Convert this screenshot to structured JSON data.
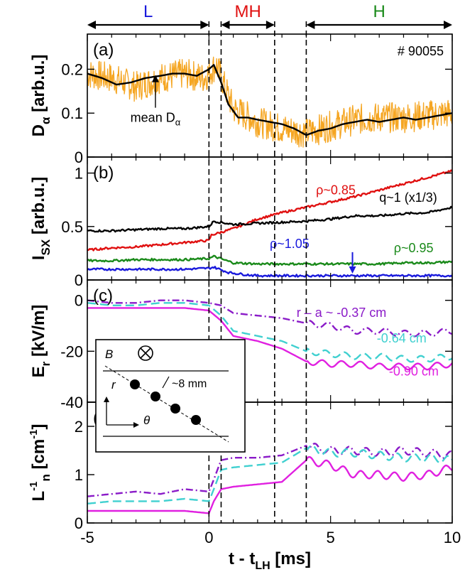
{
  "regime_bar": {
    "labels": [
      {
        "text": "L",
        "color": "#1a1adc",
        "x_start": -5.0,
        "x_end": 0.0
      },
      {
        "text": "MH",
        "color": "#e01010",
        "x_start": 0.5,
        "x_end": 2.7
      },
      {
        "text": "H",
        "color": "#1a8a1a",
        "x_start": 4.0,
        "x_end": 10.0
      }
    ]
  },
  "chart_data": [
    {
      "type": "line",
      "panel_label": "(a)",
      "ylabel_main": "D",
      "ylabel_sub": "α",
      "ylabel_unit": " [arb.u.]",
      "annotation": "# 90055",
      "callout": {
        "text": "mean D",
        "sub": "α",
        "x": -2.2,
        "y": 0.19
      },
      "xlim": [
        -5,
        10
      ],
      "ylim": [
        0,
        0.28
      ],
      "yticks": [
        0,
        0.1,
        0.2
      ],
      "ytick_labels": [
        "0",
        "0.1",
        "0.2"
      ],
      "series": [
        {
          "color": "#f5a623",
          "raw": true,
          "x": [
            -5,
            -4,
            -3,
            -2,
            -1,
            -0.2,
            0.3,
            1,
            2,
            3,
            4,
            5,
            6,
            7,
            8,
            9,
            10
          ],
          "y": [
            0.19,
            0.18,
            0.16,
            0.18,
            0.19,
            0.18,
            0.21,
            0.11,
            0.08,
            0.065,
            0.055,
            0.07,
            0.085,
            0.09,
            0.09,
            0.095,
            0.1
          ]
        },
        {
          "color": "#000000",
          "raw": false,
          "x": [
            -5,
            -4.4,
            -3.8,
            -3.2,
            -2.6,
            -2.0,
            -1.5,
            -1.0,
            -0.5,
            0,
            0.2,
            0.5,
            0.8,
            1.2,
            1.6,
            2.0,
            2.5,
            3.0,
            3.5,
            4.0,
            4.5,
            5.0,
            5.5,
            6.0,
            6.5,
            7.0,
            7.5,
            8.0,
            8.5,
            9.0,
            9.5,
            10
          ],
          "y": [
            0.19,
            0.18,
            0.165,
            0.17,
            0.18,
            0.185,
            0.19,
            0.19,
            0.185,
            0.2,
            0.21,
            0.17,
            0.12,
            0.09,
            0.09,
            0.085,
            0.08,
            0.075,
            0.065,
            0.05,
            0.06,
            0.065,
            0.075,
            0.08,
            0.085,
            0.08,
            0.085,
            0.09,
            0.085,
            0.09,
            0.095,
            0.1
          ]
        }
      ]
    },
    {
      "type": "line",
      "panel_label": "(b)",
      "ylabel_main": "I",
      "ylabel_sub": "SX",
      "ylabel_unit": " [arb.u.]",
      "xlim": [
        -5,
        10
      ],
      "ylim": [
        0,
        1.15
      ],
      "yticks": [
        0,
        0.5,
        1
      ],
      "ytick_labels": [
        "0",
        "0.5",
        "1"
      ],
      "series": [
        {
          "name": "ρ~0.85",
          "color": "#e01010",
          "label_x": 4.4,
          "label_y": 0.8,
          "x": [
            -5,
            -4,
            -3,
            -2,
            -1,
            0,
            0.1,
            1,
            2,
            3,
            4,
            5,
            6,
            7,
            8,
            9,
            10
          ],
          "y": [
            0.28,
            0.3,
            0.31,
            0.33,
            0.35,
            0.37,
            0.42,
            0.48,
            0.57,
            0.63,
            0.68,
            0.73,
            0.78,
            0.84,
            0.9,
            0.96,
            1.02
          ]
        },
        {
          "name": "q~1 (x1/3)",
          "color": "#000000",
          "label_x": 7.0,
          "label_y": 0.73,
          "x": [
            -5,
            -4,
            -3,
            -2,
            -1,
            0,
            0.2,
            1,
            2,
            3,
            4,
            5,
            6,
            7,
            8,
            9,
            10
          ],
          "y": [
            0.46,
            0.46,
            0.47,
            0.48,
            0.48,
            0.5,
            0.55,
            0.52,
            0.53,
            0.54,
            0.55,
            0.57,
            0.6,
            0.6,
            0.62,
            0.63,
            0.68
          ]
        },
        {
          "name": "ρ~0.95",
          "color": "#1a8a1a",
          "label_x": 7.6,
          "label_y": 0.26,
          "x": [
            -5,
            -4,
            -3,
            -2,
            -1,
            0,
            0.2,
            1,
            2,
            3,
            4,
            5,
            6,
            7,
            8,
            9,
            10
          ],
          "y": [
            0.18,
            0.18,
            0.19,
            0.19,
            0.19,
            0.2,
            0.22,
            0.16,
            0.15,
            0.15,
            0.15,
            0.15,
            0.15,
            0.15,
            0.16,
            0.16,
            0.17
          ]
        },
        {
          "name": "ρ~1.05",
          "color": "#1a1adc",
          "label_x": 2.5,
          "label_y": 0.3,
          "x": [
            -5,
            -4,
            -3,
            -2,
            -1,
            0,
            0.2,
            0.8,
            1.5,
            2,
            3,
            4,
            5,
            6,
            7,
            8,
            9,
            10
          ],
          "y": [
            0.1,
            0.1,
            0.1,
            0.1,
            0.1,
            0.11,
            0.12,
            0.07,
            0.05,
            0.04,
            0.04,
            0.04,
            0.04,
            0.04,
            0.04,
            0.04,
            0.04,
            0.04
          ]
        }
      ],
      "arrow": {
        "color": "#1a1adc",
        "x": 5.9,
        "y_from": 0.26,
        "y_to": 0.06
      }
    },
    {
      "type": "line",
      "panel_label": "(c)",
      "ylabel_main": "E",
      "ylabel_sub": "r",
      "ylabel_unit": " [kV/m]",
      "xlim": [
        -5,
        10
      ],
      "ylim": [
        -40,
        8
      ],
      "yticks": [
        -40,
        -20,
        0
      ],
      "ytick_labels": [
        "-40",
        "-20",
        "0"
      ],
      "series": [
        {
          "name": "r – a ~ -0.37 cm",
          "color": "#8a1ac8",
          "dash": "10,4,2,4",
          "label_x": 3.6,
          "label_y": -6.5,
          "x": [
            -5,
            -4,
            -3,
            -2,
            -1,
            0,
            0.5,
            1,
            2,
            3,
            4,
            5,
            6,
            7,
            8,
            9,
            10
          ],
          "y": [
            0,
            -1,
            -1,
            0,
            0,
            -1,
            -2,
            -5,
            -6,
            -7,
            -9,
            -10,
            -12,
            -12,
            -13,
            -13,
            -12
          ]
        },
        {
          "name": "-0.64 cm",
          "color": "#40d0d0",
          "dash": "12,6",
          "label_x": 6.9,
          "label_y": -16.5,
          "x": [
            -5,
            -4,
            -3,
            -2,
            -1,
            0,
            0.5,
            1,
            2,
            3,
            4,
            5,
            6,
            7,
            8,
            9,
            10
          ],
          "y": [
            -1,
            -2,
            -2,
            -1,
            -1,
            -2,
            -6,
            -12,
            -14,
            -16,
            -20,
            -21,
            -22,
            -22,
            -23,
            -23,
            -22
          ]
        },
        {
          "name": "-0.90 cm",
          "color": "#e020e0",
          "label_x": 7.4,
          "label_y": -29.5,
          "x": [
            -5,
            -4,
            -3,
            -2,
            -1,
            0,
            0.5,
            1,
            2,
            3,
            4,
            5,
            6,
            7,
            8,
            9,
            10
          ],
          "y": [
            -3,
            -3,
            -3,
            -3,
            -3,
            -4,
            -8,
            -14,
            -16,
            -19,
            -24,
            -25,
            -25,
            -26,
            -26,
            -26,
            -25
          ]
        }
      ],
      "inset": {
        "b_label": "B",
        "r_label": "r",
        "theta_label": "θ",
        "spacing_label": "~8 mm"
      }
    },
    {
      "type": "line",
      "panel_label": "(d)",
      "ylabel_main": "L",
      "ylabel_sub": "n",
      "ylabel_sup": "-1",
      "ylabel_unit": " [cm",
      "ylabel_unit_sup": "-1",
      "ylabel_unit_end": "]",
      "xlim": [
        -5,
        10
      ],
      "ylim": [
        0,
        2.5
      ],
      "yticks": [
        0,
        1,
        2
      ],
      "ytick_labels": [
        "0",
        "1",
        "2"
      ],
      "xticks": [
        -5,
        0,
        5,
        10
      ],
      "xtick_labels": [
        "-5",
        "0",
        "5",
        "10"
      ],
      "xlabel_main": "t - t",
      "xlabel_sub": "LH",
      "xlabel_unit": " [ms]",
      "series": [
        {
          "color": "#8a1ac8",
          "dash": "10,4,2,4",
          "x": [
            -5,
            -4,
            -3,
            -2,
            -1,
            0,
            0.2,
            0.5,
            1,
            2,
            3,
            4,
            5,
            6,
            7,
            8,
            9,
            10
          ],
          "y": [
            0.55,
            0.6,
            0.65,
            0.6,
            0.7,
            0.65,
            0.9,
            1.3,
            1.35,
            1.35,
            1.4,
            1.6,
            1.5,
            1.5,
            1.45,
            1.5,
            1.45,
            1.4
          ]
        },
        {
          "color": "#40d0d0",
          "dash": "12,6",
          "x": [
            -5,
            -4,
            -3,
            -2,
            -1,
            0,
            0.2,
            0.5,
            1,
            2,
            3,
            4,
            5,
            6,
            7,
            8,
            9,
            10
          ],
          "y": [
            0.4,
            0.45,
            0.45,
            0.45,
            0.5,
            0.45,
            0.7,
            1.1,
            1.15,
            1.2,
            1.25,
            1.55,
            1.45,
            1.45,
            1.4,
            1.35,
            1.35,
            1.3
          ]
        },
        {
          "color": "#e020e0",
          "x": [
            -5,
            -4,
            -3,
            -2,
            -1,
            0,
            0.2,
            0.5,
            1,
            2,
            3,
            4,
            5,
            6,
            7,
            8,
            9,
            10
          ],
          "y": [
            0.25,
            0.25,
            0.25,
            0.25,
            0.25,
            0.2,
            0.45,
            0.7,
            0.75,
            0.8,
            0.85,
            1.3,
            1.2,
            1.0,
            1.0,
            0.95,
            1.0,
            1.15
          ]
        }
      ]
    }
  ],
  "vertical_dashes_x": [
    0,
    0.5,
    2.7,
    4.0
  ]
}
